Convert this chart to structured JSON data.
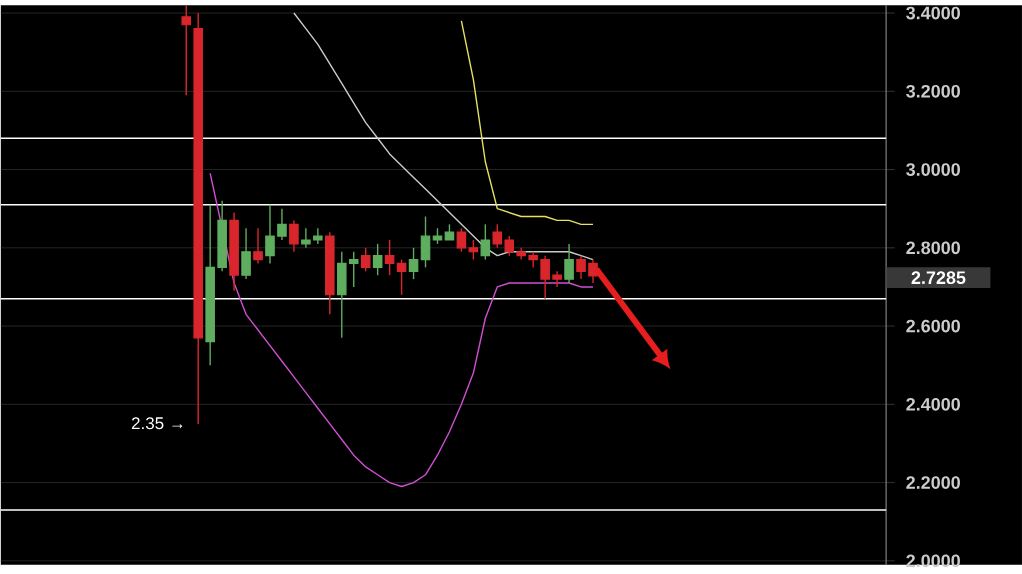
{
  "chart_data": {
    "type": "candlestick",
    "categories": [
      null,
      null,
      null,
      null,
      null,
      null,
      null,
      null,
      null,
      null,
      null,
      null,
      null,
      null,
      null,
      null,
      null,
      null,
      null,
      null,
      null,
      null,
      null,
      null,
      null,
      null,
      null,
      null,
      null,
      null,
      null,
      null,
      null,
      null,
      null,
      null,
      null,
      null,
      null,
      null,
      null,
      null,
      null,
      null,
      null,
      null,
      null,
      null,
      null,
      null,
      null,
      null,
      null,
      null,
      null,
      null,
      null,
      null,
      null,
      null,
      null,
      null,
      null,
      null,
      null,
      null,
      null,
      null,
      null,
      null,
      null,
      null,
      null,
      null
    ],
    "ohlc": [
      null,
      null,
      null,
      null,
      null,
      null,
      null,
      null,
      null,
      null,
      null,
      null,
      null,
      null,
      null,
      [
        3.39,
        3.42,
        3.19,
        3.37
      ],
      [
        3.36,
        3.4,
        2.35,
        2.57
      ],
      [
        2.56,
        2.91,
        2.5,
        2.75
      ],
      [
        2.75,
        2.92,
        2.74,
        2.87
      ],
      [
        2.87,
        2.89,
        2.69,
        2.73
      ],
      [
        2.73,
        2.85,
        2.72,
        2.79
      ],
      [
        2.79,
        2.85,
        2.76,
        2.77
      ],
      [
        2.78,
        2.91,
        2.76,
        2.83
      ],
      [
        2.83,
        2.9,
        2.82,
        2.86
      ],
      [
        2.86,
        2.87,
        2.79,
        2.81
      ],
      [
        2.81,
        2.85,
        2.8,
        2.82
      ],
      [
        2.82,
        2.85,
        2.81,
        2.83
      ],
      [
        2.83,
        2.84,
        2.63,
        2.68
      ],
      [
        2.68,
        2.79,
        2.57,
        2.76
      ],
      [
        2.76,
        2.79,
        2.7,
        2.77
      ],
      [
        2.78,
        2.8,
        2.74,
        2.75
      ],
      [
        2.75,
        2.81,
        2.73,
        2.78
      ],
      [
        2.78,
        2.82,
        2.73,
        2.76
      ],
      [
        2.76,
        2.77,
        2.68,
        2.74
      ],
      [
        2.74,
        2.8,
        2.72,
        2.77
      ],
      [
        2.77,
        2.88,
        2.75,
        2.83
      ],
      [
        2.82,
        2.85,
        2.81,
        2.83
      ],
      [
        2.82,
        2.86,
        2.82,
        2.84
      ],
      [
        2.84,
        2.85,
        2.79,
        2.8
      ],
      [
        2.8,
        2.82,
        2.77,
        2.79
      ],
      [
        2.78,
        2.86,
        2.77,
        2.82
      ],
      [
        2.84,
        2.86,
        2.8,
        2.81
      ],
      [
        2.82,
        2.83,
        2.78,
        2.79
      ],
      [
        2.79,
        2.8,
        2.77,
        2.78
      ],
      [
        2.78,
        2.79,
        2.75,
        2.77
      ],
      [
        2.77,
        2.78,
        2.67,
        2.72
      ],
      [
        2.73,
        2.74,
        2.7,
        2.72
      ],
      [
        2.72,
        2.81,
        2.71,
        2.77
      ],
      [
        2.77,
        2.78,
        2.72,
        2.74
      ],
      [
        2.76,
        2.77,
        2.71,
        2.7285
      ],
      null,
      null,
      null,
      null,
      null,
      null,
      null,
      null,
      null,
      null,
      null,
      null,
      null,
      null,
      null,
      null,
      null,
      null,
      null,
      null,
      null,
      null,
      null,
      null
    ],
    "colors": [
      null,
      null,
      null,
      null,
      null,
      null,
      null,
      null,
      null,
      null,
      null,
      null,
      null,
      null,
      null,
      "#d9262c",
      "#d9262c",
      "#5fae5f",
      "#5fae5f",
      "#d9262c",
      "#5fae5f",
      "#d9262c",
      "#5fae5f",
      "#5fae5f",
      "#d9262c",
      "#5fae5f",
      "#5fae5f",
      "#d9262c",
      "#5fae5f",
      "#5fae5f",
      "#d9262c",
      "#5fae5f",
      "#d9262c",
      "#d9262c",
      "#5fae5f",
      "#5fae5f",
      "#5fae5f",
      "#5fae5f",
      "#d9262c",
      "#d9262c",
      "#5fae5f",
      "#d9262c",
      "#d9262c",
      "#d9262c",
      "#d9262c",
      "#d9262c",
      "#d9262c",
      "#5fae5f",
      "#d9262c",
      "#d9262c",
      null,
      null,
      null,
      null,
      null,
      null,
      null,
      null,
      null,
      null,
      null,
      null,
      null,
      null,
      null,
      null,
      null,
      null,
      null,
      null,
      null,
      null,
      null,
      null
    ],
    "series": [
      {
        "type": "line",
        "color": "#d050d0",
        "values": [
          null,
          null,
          null,
          null,
          null,
          null,
          null,
          null,
          null,
          null,
          null,
          null,
          null,
          null,
          null,
          null,
          null,
          2.99,
          null,
          2.71,
          2.63,
          2.59,
          2.55,
          2.51,
          2.47,
          2.43,
          2.39,
          2.35,
          2.31,
          2.27,
          2.24,
          2.22,
          2.2,
          2.19,
          2.2,
          2.22,
          2.27,
          2.33,
          2.4,
          2.48,
          2.62,
          2.7,
          2.71,
          2.71,
          2.71,
          2.71,
          2.71,
          2.71,
          2.7,
          2.7,
          null,
          null,
          null,
          null,
          null,
          null,
          null,
          null,
          null,
          null,
          null,
          null,
          null,
          null,
          null,
          null,
          null,
          null,
          null,
          null,
          null,
          null,
          null,
          null
        ]
      },
      {
        "type": "line",
        "color": "#cccccc",
        "values": [
          null,
          null,
          null,
          null,
          null,
          null,
          null,
          null,
          null,
          null,
          null,
          null,
          null,
          null,
          null,
          null,
          null,
          null,
          null,
          null,
          null,
          null,
          null,
          null,
          3.4,
          3.36,
          3.32,
          3.27,
          3.22,
          3.17,
          3.12,
          3.08,
          3.04,
          3.01,
          2.98,
          2.95,
          2.92,
          2.89,
          2.86,
          2.83,
          2.8,
          2.78,
          2.79,
          2.79,
          2.79,
          2.79,
          2.79,
          2.79,
          2.78,
          2.77,
          null,
          null,
          null,
          null,
          null,
          null,
          null,
          null,
          null,
          null,
          null,
          null,
          null,
          null,
          null,
          null,
          null,
          null,
          null,
          null,
          null,
          null,
          null,
          null
        ]
      },
      {
        "type": "line",
        "color": "#e8e060",
        "values": [
          null,
          null,
          null,
          null,
          null,
          null,
          null,
          null,
          null,
          null,
          null,
          null,
          null,
          null,
          null,
          null,
          null,
          null,
          null,
          null,
          null,
          null,
          null,
          null,
          null,
          null,
          null,
          null,
          null,
          null,
          null,
          null,
          null,
          null,
          null,
          null,
          null,
          null,
          3.38,
          3.23,
          3.02,
          2.9,
          2.89,
          2.88,
          2.88,
          2.88,
          2.87,
          2.87,
          2.86,
          2.86,
          null,
          null,
          null,
          null,
          null,
          null,
          null,
          null,
          null,
          null,
          null,
          null,
          null,
          null,
          null,
          null,
          null,
          null,
          null,
          null,
          null,
          null,
          null,
          null
        ]
      }
    ],
    "ylim": [
      1.99,
      3.42
    ],
    "yticks": [
      {
        "value": 2.0,
        "label": "2.0000"
      },
      {
        "value": 2.2,
        "label": "2.2000"
      },
      {
        "value": 2.4,
        "label": "2.4000"
      },
      {
        "value": 2.6,
        "label": "2.6000"
      },
      {
        "value": 2.8,
        "label": "2.8000"
      },
      {
        "value": 3.0,
        "label": "3.0000"
      },
      {
        "value": 3.2,
        "label": "3.2000"
      },
      {
        "value": 3.4,
        "label": "3.4000"
      }
    ],
    "tick_labels": "y",
    "grid": "y",
    "ref_lines": [
      {
        "axis": "y",
        "value": 3.08,
        "color": "#ffffff"
      },
      {
        "axis": "y",
        "value": 2.91,
        "color": "#ffffff"
      },
      {
        "axis": "y",
        "value": 2.67,
        "color": "#ffffff"
      },
      {
        "axis": "y",
        "value": 2.13,
        "color": "#ffffff"
      }
    ],
    "annotations": [
      "2.35 →",
      "2.7285"
    ]
  }
}
